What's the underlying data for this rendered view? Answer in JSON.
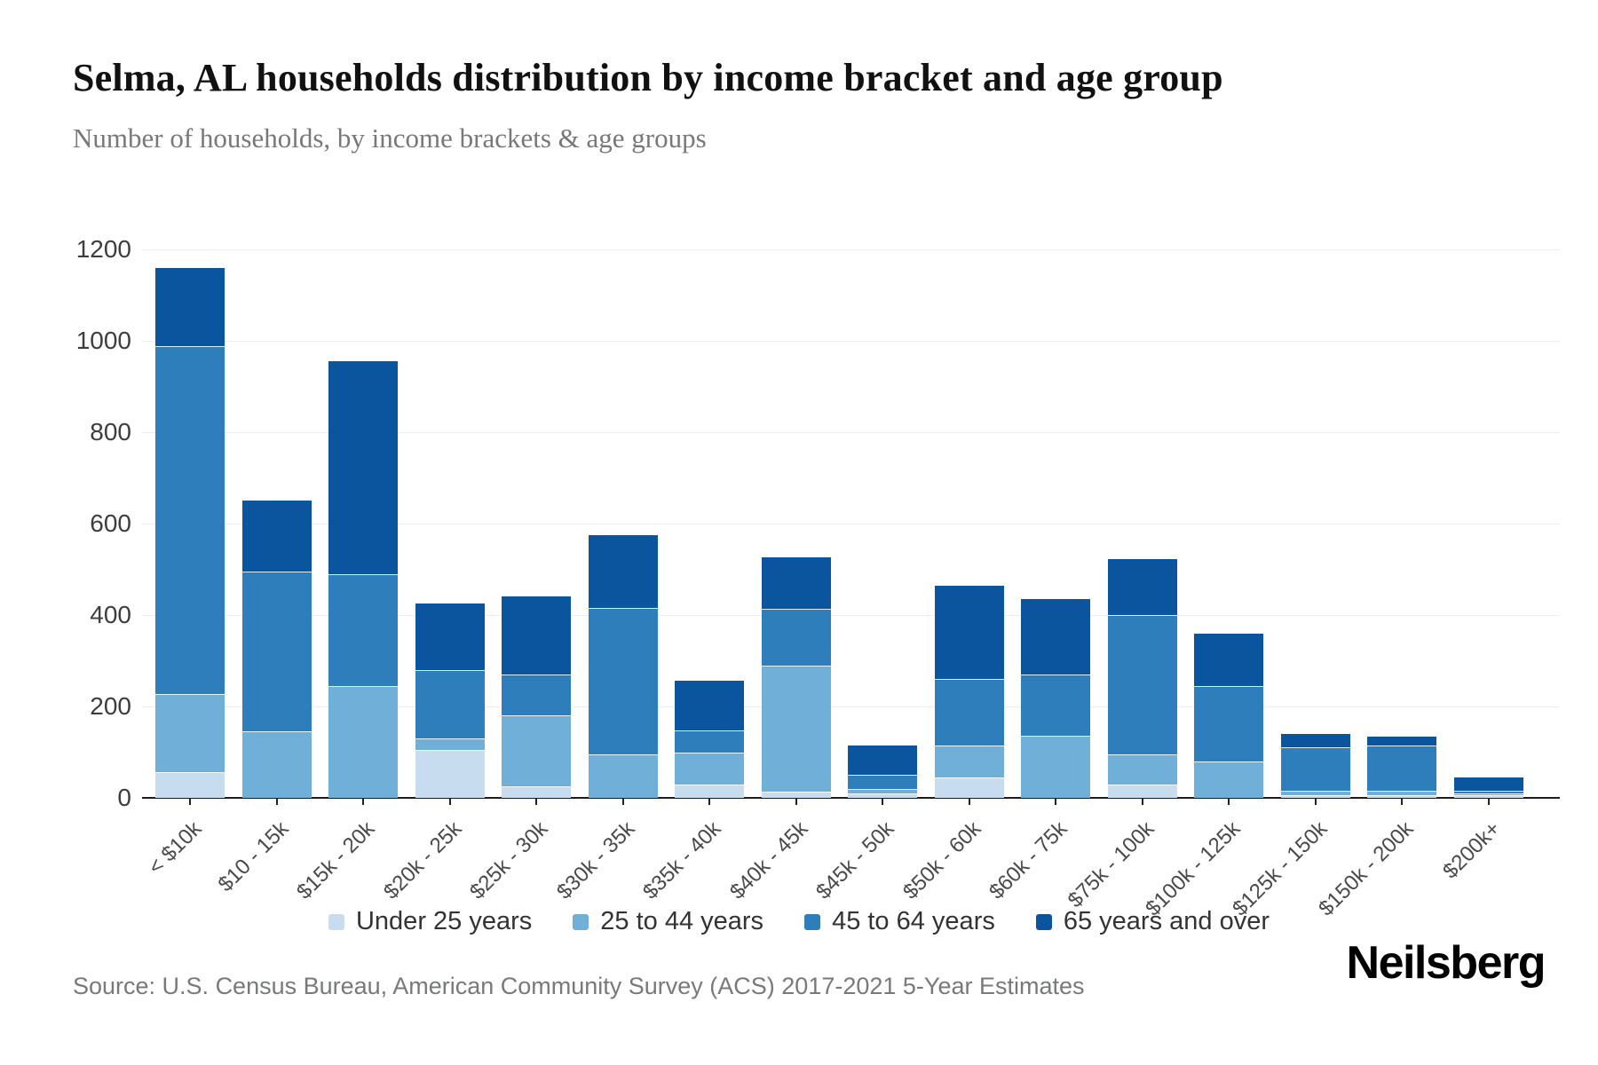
{
  "title": "Selma, AL households distribution by income bracket and age group",
  "subtitle": "Number of households, by income brackets & age groups",
  "source": "Source: U.S. Census Bureau, American Community Survey (ACS) 2017-2021 5-Year Estimates",
  "brand": "Neilsberg",
  "chart_data": {
    "type": "bar",
    "stacked": true,
    "title": "Selma, AL households distribution by income bracket and age group",
    "subtitle": "Number of households, by income brackets & age groups",
    "xlabel": "",
    "ylabel": "Number of households",
    "ylim": [
      0,
      1200
    ],
    "yticks": [
      0,
      200,
      400,
      600,
      800,
      1000,
      1200
    ],
    "grid": true,
    "legend_position": "bottom",
    "categories": [
      "< $10k",
      "$10 - 15k",
      "$15k - 20k",
      "$20k - 25k",
      "$25k - 30k",
      "$30k - 35k",
      "$35k - 40k",
      "$40k - 45k",
      "$45k - 50k",
      "$50k - 60k",
      "$60k - 75k",
      "$75k - 100k",
      "$100k - 125k",
      "$125k - 150k",
      "$150k - 200k",
      "$200k+"
    ],
    "series": [
      {
        "name": "Under 25 years",
        "color": "#c7dcef",
        "values": [
          57,
          0,
          0,
          105,
          25,
          0,
          30,
          14,
          10,
          45,
          0,
          30,
          0,
          5,
          5,
          5
        ]
      },
      {
        "name": "25 to 44 years",
        "color": "#6fafd8",
        "values": [
          170,
          145,
          245,
          25,
          155,
          95,
          70,
          275,
          10,
          70,
          135,
          65,
          80,
          10,
          10,
          5
        ]
      },
      {
        "name": "45 to 64 years",
        "color": "#2e7ebc",
        "values": [
          761,
          350,
          245,
          150,
          90,
          320,
          47,
          124,
          30,
          145,
          135,
          305,
          165,
          95,
          100,
          5
        ]
      },
      {
        "name": "65 years and over",
        "color": "#0b559f",
        "values": [
          171,
          155,
          465,
          145,
          170,
          160,
          110,
          113,
          65,
          205,
          165,
          122,
          115,
          30,
          20,
          30
        ]
      }
    ],
    "totals": [
      1159,
      650,
      955,
      425,
      440,
      575,
      257,
      526,
      115,
      465,
      435,
      522,
      360,
      140,
      135,
      45
    ]
  }
}
